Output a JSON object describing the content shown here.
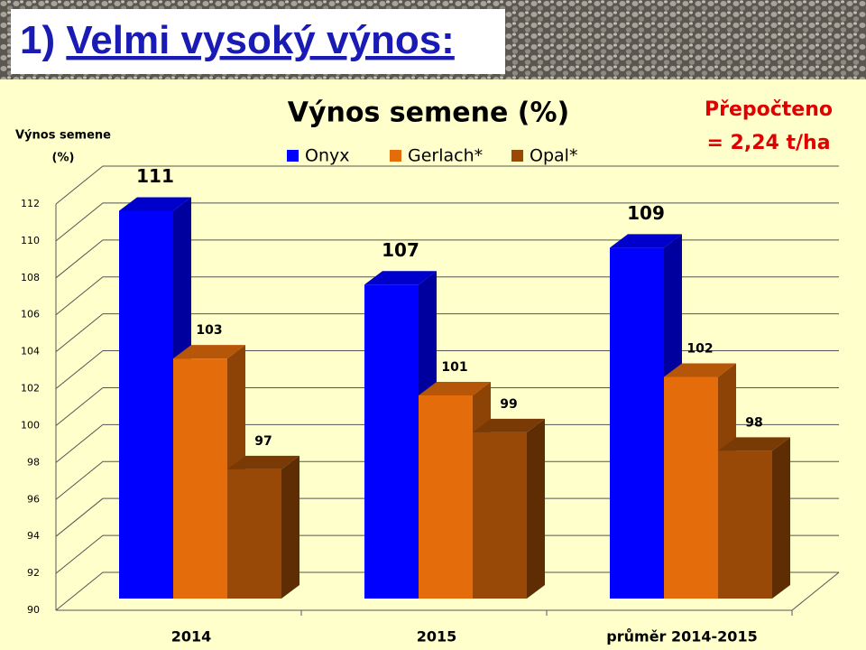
{
  "slide_title": {
    "number": "1)",
    "text": "Velmi vysoký výnos:"
  },
  "chart_data": {
    "type": "bar3d",
    "title": "Výnos semene (%)",
    "y_label_lines": [
      "Výnos semene",
      "(%)"
    ],
    "annotation_lines": [
      "Přepočteno",
      "= 2,24 t/ha"
    ],
    "categories": [
      "2014",
      "2015",
      "průměr 2014-2015"
    ],
    "series": [
      {
        "name": "Onyx",
        "color": "#0000ff",
        "values": [
          111,
          107,
          109
        ]
      },
      {
        "name": "Gerlach*",
        "color": "#e46c0a",
        "values": [
          103,
          101,
          102
        ]
      },
      {
        "name": "Opal*",
        "color": "#984807",
        "values": [
          97,
          99,
          98
        ]
      }
    ],
    "ylim": [
      90,
      112
    ],
    "yticks": [
      90,
      92,
      94,
      96,
      98,
      100,
      102,
      104,
      106,
      108,
      110,
      112
    ],
    "grid": true,
    "legend": "top"
  }
}
